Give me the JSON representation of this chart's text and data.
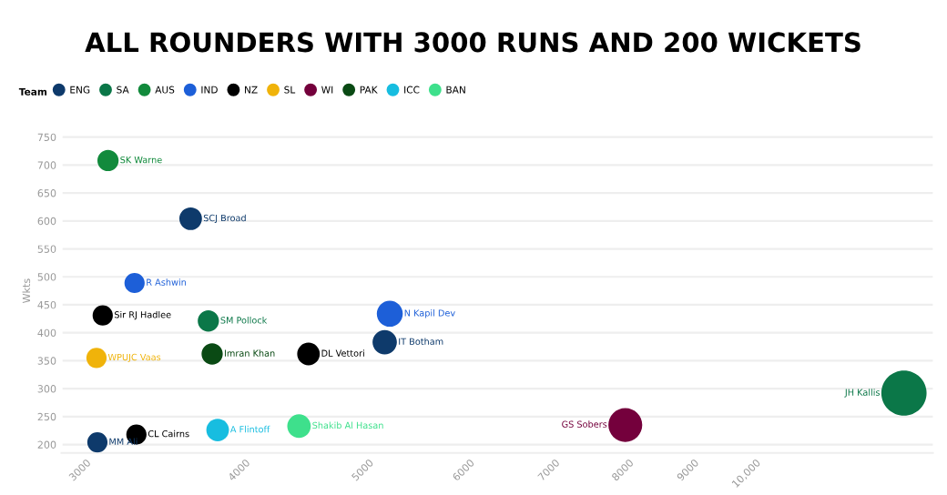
{
  "chart_data": {
    "type": "bubble",
    "title": "ALL ROUNDERS WITH 3000 RUNS AND 200 WICKETS",
    "ylabel": "Wkts",
    "legend_title": "Team",
    "legend": "top left",
    "grid": "y",
    "log": "x",
    "xlim": [
      2900,
      14000
    ],
    "xticks": [
      3000,
      4000,
      5000,
      6000,
      7000,
      8000,
      9000,
      {
        "value": 10000,
        "label": "10,000"
      }
    ],
    "ylim": [
      185,
      765
    ],
    "yticks": [
      200,
      250,
      300,
      350,
      400,
      450,
      500,
      550,
      600,
      650,
      700,
      750
    ],
    "series": [
      {
        "name": "ENG",
        "color": "#0e3a6b",
        "x": [
          3662,
          5200,
          3094
        ],
        "values": [
          604,
          383,
          204
        ],
        "sizes": [
          0.25,
          0.29,
          0.2
        ]
      },
      {
        "name": "SA",
        "color": "#0b7748",
        "x": [
          3781,
          13289
        ],
        "values": [
          421,
          292
        ],
        "sizes": [
          0.22,
          1
        ]
      },
      {
        "name": "AUS",
        "color": "#128a3c",
        "x": [
          3154
        ],
        "values": [
          708
        ],
        "sizes": [
          0.22
        ]
      },
      {
        "name": "IND",
        "color": "#1d5fd8",
        "x": [
          3309,
          5248
        ],
        "values": [
          489,
          434
        ],
        "sizes": [
          0.2,
          0.33
        ]
      },
      {
        "name": "NZ",
        "color": "#000000",
        "x": [
          3124,
          4531,
          3320
        ],
        "values": [
          431,
          362,
          218
        ],
        "sizes": [
          0.2,
          0.25,
          0.2
        ]
      },
      {
        "name": "SL",
        "color": "#f0b30a",
        "x": [
          3089
        ],
        "values": [
          355
        ],
        "sizes": [
          0.2
        ]
      },
      {
        "name": "WI",
        "color": "#74003c",
        "x": [
          8032
        ],
        "values": [
          235
        ],
        "sizes": [
          0.56
        ]
      },
      {
        "name": "PAK",
        "color": "#0a4a14",
        "x": [
          3807
        ],
        "values": [
          362
        ],
        "sizes": [
          0.22
        ]
      },
      {
        "name": "ICC",
        "color": "#17bde0",
        "x": [
          3845
        ],
        "values": [
          226
        ],
        "sizes": [
          0.25
        ]
      },
      {
        "name": "BAN",
        "color": "#3ee08c",
        "x": [
          4454
        ],
        "values": [
          233
        ],
        "sizes": [
          0.27
        ]
      }
    ],
    "annotations": [
      {
        "text": "SCJ Broad",
        "x": 3662,
        "y": 604
      },
      {
        "text": "IT Botham",
        "x": 5200,
        "y": 383
      },
      {
        "text": "MM Ali",
        "x": 3094,
        "y": 204
      },
      {
        "text": "SM Pollock",
        "x": 3781,
        "y": 421
      },
      {
        "text": "JH Kallis",
        "x": 13289,
        "y": 292
      },
      {
        "text": "SK Warne",
        "x": 3154,
        "y": 708
      },
      {
        "text": "R Ashwin",
        "x": 3309,
        "y": 489
      },
      {
        "text": "N Kapil Dev",
        "x": 5248,
        "y": 434
      },
      {
        "text": "Sir RJ Hadlee",
        "x": 3124,
        "y": 431
      },
      {
        "text": "DL Vettori",
        "x": 4531,
        "y": 362
      },
      {
        "text": "CL Cairns",
        "x": 3320,
        "y": 218
      },
      {
        "text": "WPUJC Vaas",
        "x": 3089,
        "y": 355
      },
      {
        "text": "GS Sobers",
        "x": 8032,
        "y": 235
      },
      {
        "text": "Imran Khan",
        "x": 3807,
        "y": 362
      },
      {
        "text": "A Flintoff",
        "x": 3845,
        "y": 226
      },
      {
        "text": "Shakib Al Hasan",
        "x": 4454,
        "y": 233
      }
    ]
  }
}
